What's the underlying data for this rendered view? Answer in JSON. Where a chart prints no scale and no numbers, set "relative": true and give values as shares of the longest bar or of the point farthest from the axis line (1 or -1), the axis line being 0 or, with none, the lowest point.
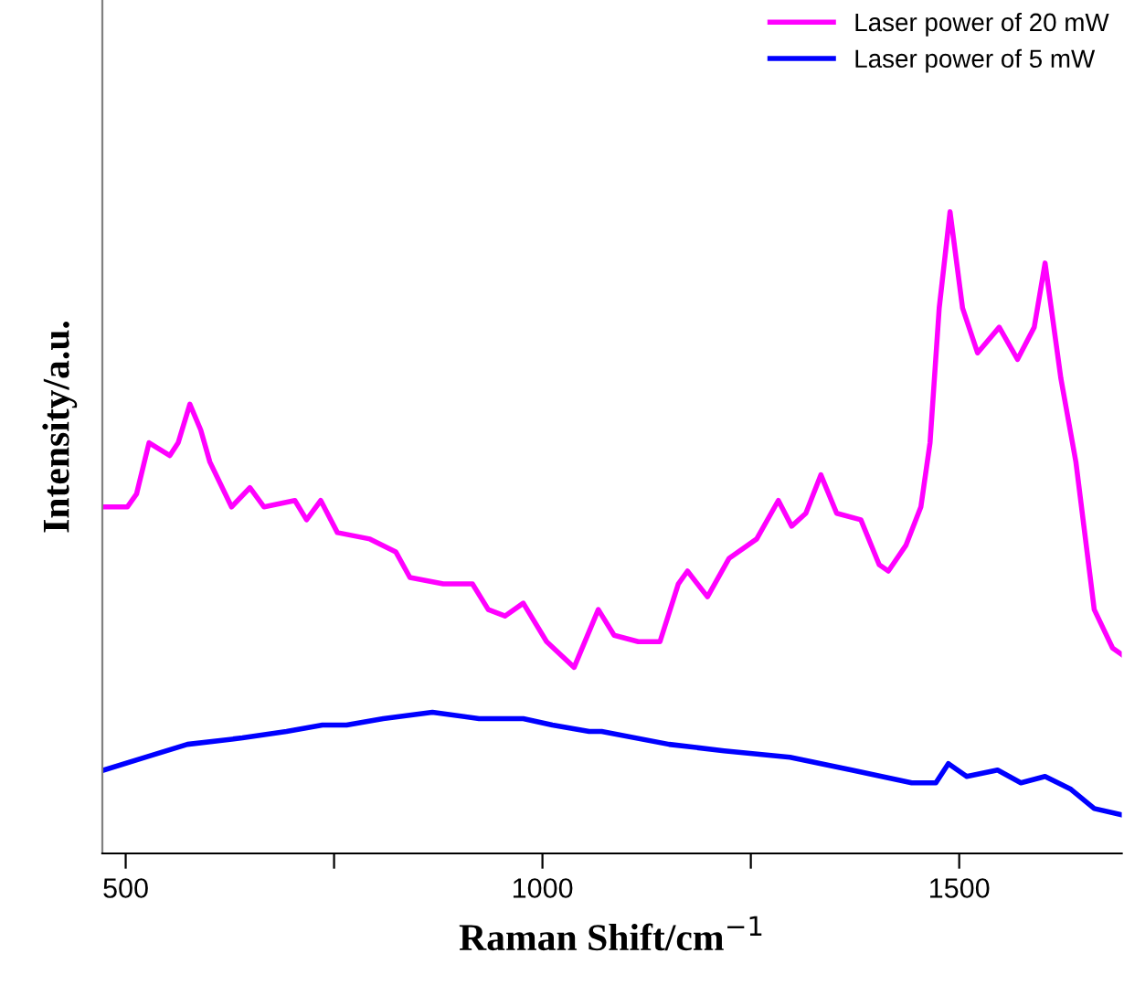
{
  "chart_data": {
    "type": "line",
    "xlabel": "Raman Shift/cm$^{−1}$",
    "ylabel": "Intensity/a.u.",
    "relative": true,
    "xlim": [
      472,
      1695
    ],
    "xticks": [
      500,
      {
        "value": 750,
        "label": null
      },
      1000,
      {
        "value": 1250,
        "label": null
      },
      1500
    ],
    "legend": "top right",
    "grid": false,
    "marker": "none",
    "line_style": "solid",
    "series": [
      {
        "name": "Laser power of 20 mW",
        "color": "#ff00ff",
        "x": [
          474,
          502,
          513,
          528,
          553,
          563,
          577,
          590,
          601,
          627,
          649,
          666,
          703,
          717,
          734,
          754,
          793,
          824,
          841,
          881,
          916,
          935,
          955,
          977,
          1005,
          1038,
          1067,
          1086,
          1115,
          1141,
          1163,
          1174,
          1198,
          1224,
          1257,
          1283,
          1299,
          1316,
          1334,
          1353,
          1382,
          1404,
          1415,
          1436,
          1454,
          1465,
          1476,
          1489,
          1504,
          1522,
          1548,
          1570,
          1590,
          1603,
          1622,
          1640,
          1662,
          1684,
          1695
        ],
        "values": [
          0.54,
          0.54,
          0.56,
          0.64,
          0.62,
          0.64,
          0.7,
          0.66,
          0.61,
          0.54,
          0.57,
          0.54,
          0.55,
          0.52,
          0.55,
          0.5,
          0.49,
          0.47,
          0.43,
          0.42,
          0.42,
          0.38,
          0.37,
          0.39,
          0.33,
          0.29,
          0.38,
          0.34,
          0.33,
          0.33,
          0.42,
          0.44,
          0.4,
          0.46,
          0.49,
          0.55,
          0.51,
          0.53,
          0.59,
          0.53,
          0.52,
          0.45,
          0.44,
          0.48,
          0.54,
          0.64,
          0.85,
          1.0,
          0.85,
          0.78,
          0.82,
          0.77,
          0.82,
          0.92,
          0.74,
          0.61,
          0.38,
          0.32,
          0.31
        ]
      },
      {
        "name": "Laser power of 5 mW",
        "color": "#0000ff",
        "x": [
          474,
          524,
          574,
          640,
          693,
          736,
          765,
          809,
          868,
          924,
          977,
          1012,
          1056,
          1071,
          1152,
          1218,
          1297,
          1371,
          1443,
          1472,
          1487,
          1509,
          1546,
          1574,
          1603,
          1634,
          1662,
          1695
        ],
        "values": [
          0.13,
          0.15,
          0.17,
          0.18,
          0.19,
          0.2,
          0.2,
          0.21,
          0.22,
          0.21,
          0.21,
          0.2,
          0.19,
          0.19,
          0.17,
          0.16,
          0.15,
          0.13,
          0.11,
          0.11,
          0.14,
          0.12,
          0.13,
          0.11,
          0.12,
          0.1,
          0.07,
          0.06
        ]
      }
    ]
  }
}
